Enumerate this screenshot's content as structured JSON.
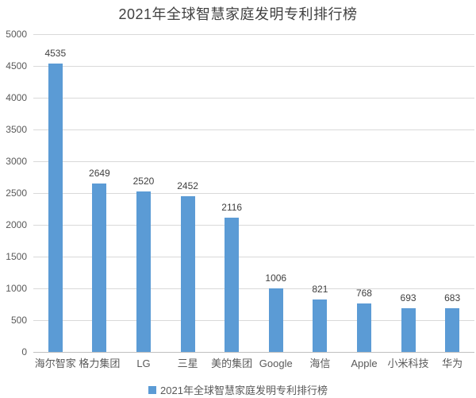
{
  "title": "2021年全球智慧家庭发明专利排行榜",
  "legend": {
    "label": "2021年全球智慧家庭发明专利排行榜",
    "swatch_color": "#5b9bd5",
    "position": "bottom"
  },
  "colors": {
    "bar": "#5b9bd5",
    "gridline": "#d9d9d9",
    "axis_line": "#bfbfbf",
    "title_text": "#404040",
    "data_label_text": "#404040",
    "tick_text": "#595959"
  },
  "chart_data": {
    "type": "bar",
    "title": "2021年全球智慧家庭发明专利排行榜",
    "series_name": "2021年全球智慧家庭发明专利排行榜",
    "categories": [
      "海尔智家",
      "格力集团",
      "LG",
      "三星",
      "美的集团",
      "Google",
      "海信",
      "Apple",
      "小米科技",
      "华为"
    ],
    "values": [
      4535,
      2649,
      2520,
      2452,
      2116,
      1006,
      821,
      768,
      693,
      683
    ],
    "data_labels": true,
    "xlabel": "",
    "ylabel": "",
    "ylim": [
      0,
      5000
    ],
    "ytick_interval": 500,
    "yticks": [
      0,
      500,
      1000,
      1500,
      2000,
      2500,
      3000,
      3500,
      4000,
      4500,
      5000
    ],
    "grid": true,
    "legend_position": "bottom"
  }
}
